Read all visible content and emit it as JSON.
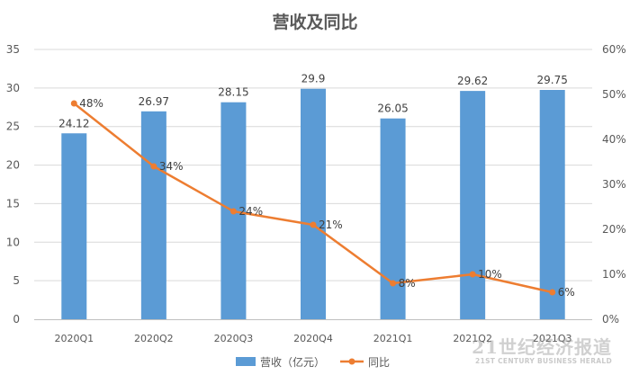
{
  "chart_data": {
    "type": "bar",
    "title": "营收及同比",
    "categories": [
      "2020Q1",
      "2020Q2",
      "2020Q3",
      "2020Q4",
      "2021Q1",
      "2021Q2",
      "2021Q3"
    ],
    "series": [
      {
        "name": "营收（亿元）",
        "type": "bar",
        "axis": "left",
        "values": [
          24.12,
          26.97,
          28.15,
          29.9,
          26.05,
          29.62,
          29.75
        ],
        "labels": [
          "24.12",
          "26.97",
          "28.15",
          "29.9",
          "26.05",
          "29.62",
          "29.75"
        ],
        "color": "#5b9bd5"
      },
      {
        "name": "同比",
        "type": "line",
        "axis": "right",
        "values": [
          48,
          34,
          24,
          21,
          8,
          10,
          6
        ],
        "labels": [
          "48%",
          "34%",
          "24%",
          "21%",
          "8%",
          "10%",
          "6%"
        ],
        "color": "#ed7d31"
      }
    ],
    "y_left": {
      "lim": [
        0,
        35
      ],
      "ticks": [
        "0",
        "5",
        "10",
        "15",
        "20",
        "25",
        "30",
        "35"
      ]
    },
    "y_right": {
      "lim": [
        0,
        60
      ],
      "ticks": [
        "0%",
        "10%",
        "20%",
        "30%",
        "40%",
        "50%",
        "60%"
      ]
    },
    "grid": true,
    "legend": "bottom"
  },
  "watermark": {
    "main": "21世纪经济报道",
    "sub": "21ST CENTURY BUSINESS HERALD"
  }
}
